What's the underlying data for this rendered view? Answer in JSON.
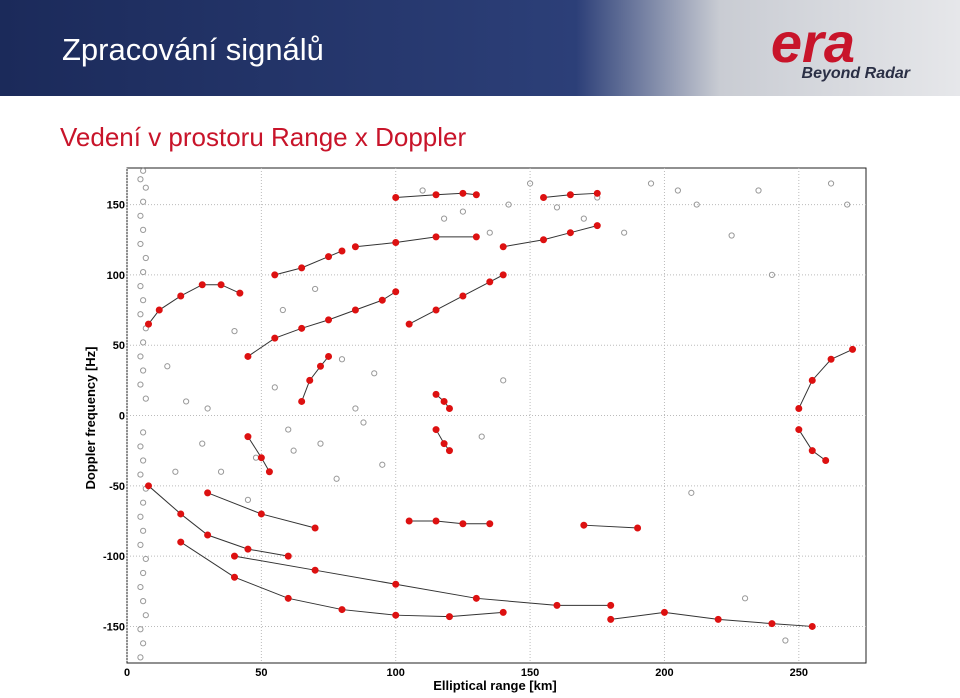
{
  "header": {
    "title": "Zpracování signálů",
    "subtitle": "Vedení v prostoru Range x Doppler",
    "logo": "era",
    "tagline": "Beyond Radar"
  },
  "chart_data": {
    "type": "scatter",
    "x_label": "Elliptical range [km]",
    "y_label": "Doppler frequency [Hz]",
    "xlim": [
      0,
      275
    ],
    "ylim": [
      -176,
      176
    ],
    "xticks": [
      0,
      50,
      100,
      150,
      200,
      250
    ],
    "yticks": [
      -150,
      -100,
      -50,
      0,
      50,
      100,
      150
    ],
    "grid": true,
    "series": [
      {
        "color": "#999999",
        "line": false,
        "x": [
          5,
          6,
          5,
          7,
          6,
          5,
          6,
          7,
          5,
          6,
          5,
          6,
          7,
          5,
          6,
          5,
          6,
          7,
          5,
          6,
          5,
          6,
          7,
          5,
          6,
          5,
          6,
          7,
          5,
          6,
          5,
          6,
          7,
          5,
          6
        ],
        "y": [
          -172,
          -162,
          -152,
          -142,
          -132,
          -122,
          -112,
          -102,
          -92,
          -82,
          -72,
          -62,
          -52,
          -42,
          -32,
          -22,
          -12,
          12,
          22,
          32,
          42,
          52,
          62,
          72,
          82,
          92,
          102,
          112,
          122,
          132,
          142,
          152,
          162,
          168,
          174
        ],
        "mode": "clutter"
      },
      {
        "color": "#999999",
        "line": false,
        "x": [
          15,
          22,
          28,
          35,
          40,
          48,
          55,
          60,
          72,
          80,
          88,
          92,
          110,
          118,
          125,
          135,
          142,
          150,
          160,
          170,
          175,
          185,
          195,
          205,
          212,
          225,
          235,
          240,
          262,
          268,
          18,
          30,
          45,
          58,
          70,
          85,
          95,
          132,
          210,
          230,
          62,
          78,
          140,
          245
        ],
        "y": [
          35,
          10,
          -20,
          -40,
          60,
          -30,
          20,
          -10,
          -20,
          40,
          -5,
          30,
          160,
          140,
          145,
          130,
          150,
          165,
          148,
          140,
          155,
          130,
          165,
          160,
          150,
          128,
          160,
          100,
          165,
          150,
          -40,
          5,
          -60,
          75,
          90,
          5,
          -35,
          -15,
          -55,
          -130,
          -25,
          -45,
          25,
          -160
        ],
        "mode": "clutter"
      },
      {
        "color": "#dd1111",
        "line": true,
        "x": [
          8,
          12,
          20,
          28,
          35,
          42
        ],
        "y": [
          65,
          75,
          85,
          93,
          93,
          87
        ]
      },
      {
        "color": "#dd1111",
        "line": true,
        "x": [
          45,
          55,
          65,
          75,
          85,
          95,
          100
        ],
        "y": [
          42,
          55,
          62,
          68,
          75,
          82,
          88
        ]
      },
      {
        "color": "#dd1111",
        "line": true,
        "x": [
          55,
          65,
          75,
          80
        ],
        "y": [
          100,
          105,
          113,
          117
        ]
      },
      {
        "color": "#dd1111",
        "line": true,
        "x": [
          85,
          100,
          115,
          130
        ],
        "y": [
          120,
          123,
          127,
          127
        ]
      },
      {
        "color": "#dd1111",
        "line": true,
        "x": [
          100,
          115,
          125,
          130
        ],
        "y": [
          155,
          157,
          158,
          157
        ]
      },
      {
        "color": "#dd1111",
        "line": true,
        "x": [
          155,
          165,
          175
        ],
        "y": [
          155,
          157,
          158
        ]
      },
      {
        "color": "#dd1111",
        "line": true,
        "x": [
          140,
          155,
          165,
          175
        ],
        "y": [
          120,
          125,
          130,
          135
        ]
      },
      {
        "color": "#dd1111",
        "line": true,
        "x": [
          105,
          115,
          125,
          135,
          140
        ],
        "y": [
          65,
          75,
          85,
          95,
          100
        ]
      },
      {
        "color": "#dd1111",
        "line": true,
        "x": [
          65,
          68,
          72,
          75
        ],
        "y": [
          10,
          25,
          35,
          42
        ]
      },
      {
        "color": "#dd1111",
        "line": true,
        "x": [
          250,
          255,
          262,
          270
        ],
        "y": [
          5,
          25,
          40,
          47
        ]
      },
      {
        "color": "#dd1111",
        "line": true,
        "x": [
          8,
          20,
          30,
          45,
          60
        ],
        "y": [
          -50,
          -70,
          -85,
          -95,
          -100
        ]
      },
      {
        "color": "#dd1111",
        "line": true,
        "x": [
          20,
          40,
          60,
          80,
          100,
          120,
          140
        ],
        "y": [
          -90,
          -115,
          -130,
          -138,
          -142,
          -143,
          -140
        ]
      },
      {
        "color": "#dd1111",
        "line": true,
        "x": [
          30,
          50,
          70
        ],
        "y": [
          -55,
          -70,
          -80
        ]
      },
      {
        "color": "#dd1111",
        "line": true,
        "x": [
          40,
          70,
          100,
          130,
          160,
          180
        ],
        "y": [
          -100,
          -110,
          -120,
          -130,
          -135,
          -135
        ]
      },
      {
        "color": "#dd1111",
        "line": true,
        "x": [
          105,
          115,
          125,
          135
        ],
        "y": [
          -75,
          -75,
          -77,
          -77
        ]
      },
      {
        "color": "#dd1111",
        "line": true,
        "x": [
          170,
          190
        ],
        "y": [
          -78,
          -80
        ]
      },
      {
        "color": "#dd1111",
        "line": true,
        "x": [
          180,
          200,
          220,
          240,
          255
        ],
        "y": [
          -145,
          -140,
          -145,
          -148,
          -150
        ]
      },
      {
        "color": "#dd1111",
        "line": true,
        "x": [
          45,
          50,
          53
        ],
        "y": [
          -15,
          -30,
          -40
        ]
      },
      {
        "color": "#dd1111",
        "line": true,
        "x": [
          250,
          255,
          260
        ],
        "y": [
          -10,
          -25,
          -32
        ]
      },
      {
        "color": "#dd1111",
        "line": true,
        "x": [
          115,
          118,
          120
        ],
        "y": [
          -10,
          -20,
          -25
        ]
      },
      {
        "color": "#dd1111",
        "line": true,
        "x": [
          115,
          118,
          120
        ],
        "y": [
          15,
          10,
          5
        ]
      }
    ]
  }
}
